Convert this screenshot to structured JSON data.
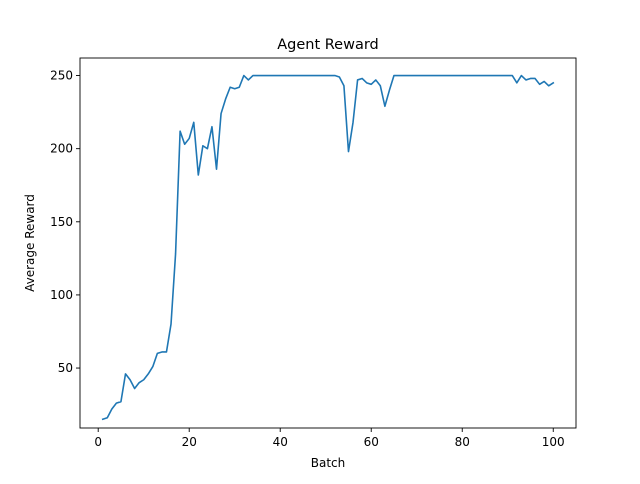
{
  "chart_data": {
    "type": "line",
    "title": "Agent Reward",
    "xlabel": "Batch",
    "ylabel": "Average Reward",
    "xlim": [
      -4,
      105
    ],
    "ylim": [
      9,
      262
    ],
    "xticks": [
      0,
      20,
      40,
      60,
      80,
      100
    ],
    "yticks": [
      50,
      100,
      150,
      200,
      250
    ],
    "grid": false,
    "line_color": "#1f77b4",
    "series": [
      {
        "x": [
          1,
          2,
          3,
          4,
          5,
          6,
          7,
          8,
          9,
          10,
          11,
          12,
          13,
          14,
          15,
          16,
          17,
          18,
          19,
          20,
          21,
          22,
          23,
          24,
          25,
          26,
          27,
          28,
          29,
          30,
          31,
          32,
          33,
          34,
          35,
          36,
          37,
          38,
          39,
          40,
          41,
          42,
          43,
          44,
          45,
          46,
          47,
          48,
          49,
          50,
          51,
          52,
          53,
          54,
          55,
          56,
          57,
          58,
          59,
          60,
          61,
          62,
          63,
          64,
          65,
          66,
          67,
          68,
          69,
          70,
          71,
          72,
          73,
          74,
          75,
          76,
          77,
          78,
          79,
          80,
          81,
          82,
          83,
          84,
          85,
          86,
          87,
          88,
          89,
          90,
          91,
          92,
          93,
          94,
          95,
          96,
          97,
          98,
          99,
          100
        ],
        "values": [
          15,
          16,
          22,
          26,
          27,
          46,
          42,
          36,
          40,
          42,
          46,
          51,
          60,
          61,
          61,
          80,
          128,
          212,
          203,
          207,
          218,
          182,
          202,
          200,
          215,
          186,
          224,
          234,
          242,
          241,
          242,
          250,
          247,
          250,
          250,
          250,
          250,
          250,
          250,
          250,
          250,
          250,
          250,
          250,
          250,
          250,
          250,
          250,
          250,
          250,
          250,
          250,
          249,
          243,
          198,
          218,
          247,
          248,
          245,
          244,
          247,
          243,
          229,
          240,
          250,
          250,
          250,
          250,
          250,
          250,
          250,
          250,
          250,
          250,
          250,
          250,
          250,
          250,
          250,
          250,
          250,
          250,
          250,
          250,
          250,
          250,
          250,
          250,
          250,
          250,
          250,
          245,
          250,
          247,
          248,
          248,
          244,
          246,
          243,
          245
        ]
      }
    ]
  }
}
